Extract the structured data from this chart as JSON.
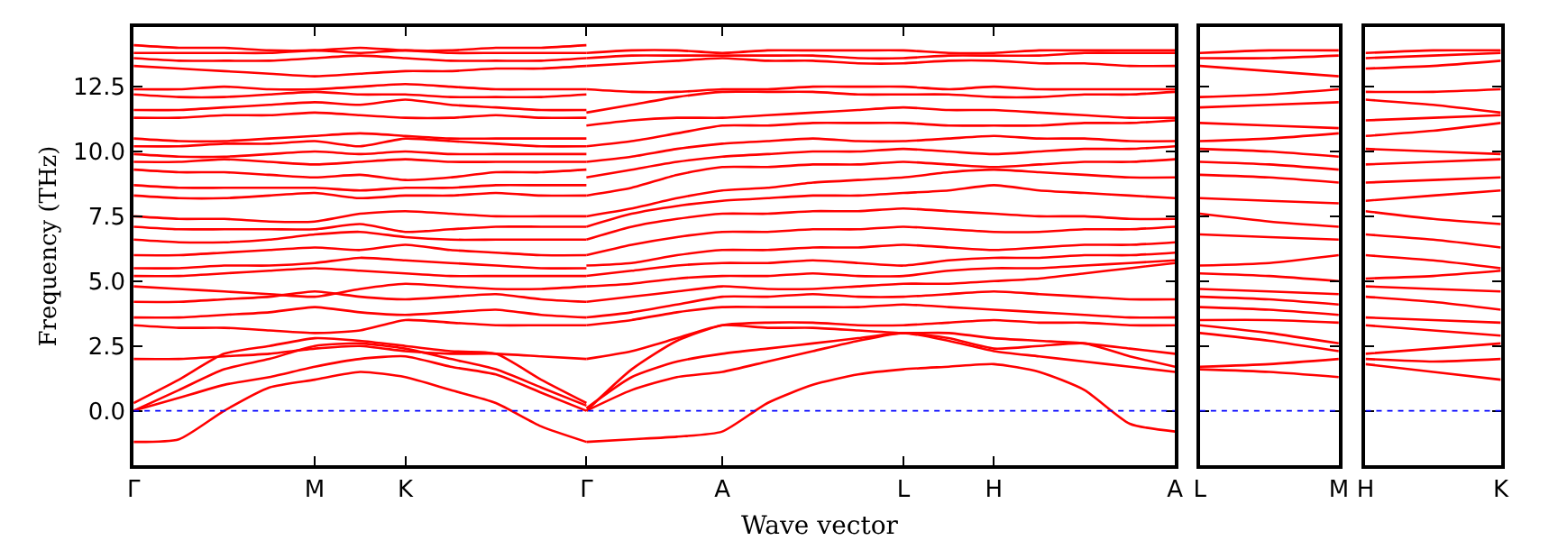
{
  "chart_data": [
    {
      "type": "line",
      "xlabel": "Wave vector",
      "ylabel": "Frequency (THz)",
      "ylim": [
        -2.1,
        14.8
      ],
      "categories": [
        "Γ",
        null,
        null,
        null,
        "M",
        null,
        "K",
        null,
        null,
        null,
        "Γ",
        null,
        null,
        "A",
        null,
        null,
        null,
        "L",
        null,
        "H",
        null,
        null,
        null,
        "A"
      ],
      "yticks": [
        {
          "value": 0,
          "label": "0.0"
        },
        {
          "value": 2.5,
          "label": "2.5"
        },
        {
          "value": 5,
          "label": "5.0"
        },
        {
          "value": 7.5,
          "label": "7.5"
        },
        {
          "value": 10,
          "label": "10.0"
        },
        {
          "value": 12.5,
          "label": "12.5"
        }
      ],
      "ref_lines": [
        {
          "axis": "y",
          "value": 0,
          "color": "#0000ff",
          "line_style": "dotted"
        }
      ],
      "marker": "none",
      "line_style": "solid",
      "series": [
        {
          "color": "#ff0000",
          "values": [
            -1.2,
            -1.1,
            0,
            0.9,
            1.2,
            1.5,
            1.3,
            0.8,
            0.3,
            -0.6,
            -1.2,
            null,
            null,
            null,
            null,
            null,
            null,
            null,
            null,
            null,
            null,
            null,
            null,
            null
          ]
        },
        {
          "color": "#ff0000",
          "values": [
            0,
            0.5,
            1.0,
            1.3,
            1.7,
            2.0,
            2.1,
            1.7,
            1.4,
            0.7,
            0,
            null,
            null,
            null,
            null,
            null,
            null,
            null,
            null,
            null,
            null,
            null,
            null,
            null
          ]
        },
        {
          "color": "#ff0000",
          "values": [
            0,
            0.8,
            1.6,
            2.0,
            2.5,
            2.6,
            2.4,
            2.0,
            1.6,
            0.9,
            0.2,
            null,
            null,
            null,
            null,
            null,
            null,
            null,
            null,
            null,
            null,
            null,
            null,
            null
          ]
        },
        {
          "color": "#ff0000",
          "values": [
            0.3,
            1.2,
            2.2,
            2.5,
            2.8,
            2.7,
            2.5,
            2.3,
            2.2,
            1.2,
            0.3,
            null,
            null,
            null,
            null,
            null,
            null,
            null,
            null,
            null,
            null,
            null,
            null,
            null
          ]
        },
        {
          "color": "#ff0000",
          "values": [
            2.0,
            2.0,
            2.1,
            2.2,
            2.4,
            2.5,
            2.3,
            2.2,
            2.2,
            2.1,
            2.0,
            null,
            null,
            null,
            null,
            null,
            null,
            null,
            null,
            null,
            null,
            null,
            null,
            null
          ]
        },
        {
          "color": "#ff0000",
          "values": [
            3.3,
            3.2,
            3.2,
            3.1,
            3.0,
            3.1,
            3.5,
            3.4,
            3.3,
            3.3,
            3.3,
            null,
            null,
            null,
            null,
            null,
            null,
            null,
            null,
            null,
            null,
            null,
            null,
            null
          ]
        },
        {
          "color": "#ff0000",
          "values": [
            3.6,
            3.6,
            3.7,
            3.8,
            4.0,
            3.8,
            3.7,
            3.8,
            3.9,
            3.7,
            3.6,
            null,
            null,
            null,
            null,
            null,
            null,
            null,
            null,
            null,
            null,
            null,
            null,
            null
          ]
        },
        {
          "color": "#ff0000",
          "values": [
            4.2,
            4.2,
            4.3,
            4.4,
            4.6,
            4.4,
            4.3,
            4.4,
            4.5,
            4.3,
            4.2,
            null,
            null,
            null,
            null,
            null,
            null,
            null,
            null,
            null,
            null,
            null,
            null,
            null
          ]
        },
        {
          "color": "#ff0000",
          "values": [
            4.8,
            4.7,
            4.6,
            4.5,
            4.4,
            4.7,
            4.9,
            4.8,
            4.7,
            4.7,
            4.8,
            null,
            null,
            null,
            null,
            null,
            null,
            null,
            null,
            null,
            null,
            null,
            null,
            null
          ]
        },
        {
          "color": "#ff0000",
          "values": [
            5.2,
            5.2,
            5.3,
            5.4,
            5.5,
            5.4,
            5.3,
            5.2,
            5.2,
            5.2,
            5.2,
            null,
            null,
            null,
            null,
            null,
            null,
            null,
            null,
            null,
            null,
            null,
            null,
            null
          ]
        },
        {
          "color": "#ff0000",
          "values": [
            5.5,
            5.5,
            5.6,
            5.6,
            5.7,
            5.9,
            5.8,
            5.7,
            5.6,
            5.5,
            5.5,
            null,
            null,
            null,
            null,
            null,
            null,
            null,
            null,
            null,
            null,
            null,
            null,
            null
          ]
        },
        {
          "color": "#ff0000",
          "values": [
            6.0,
            6.0,
            6.1,
            6.2,
            6.3,
            6.2,
            6.4,
            6.2,
            6.1,
            6.0,
            6.0,
            null,
            null,
            null,
            null,
            null,
            null,
            null,
            null,
            null,
            null,
            null,
            null,
            null
          ]
        },
        {
          "color": "#ff0000",
          "values": [
            6.6,
            6.5,
            6.5,
            6.6,
            6.8,
            6.9,
            6.7,
            6.6,
            6.6,
            6.6,
            6.6,
            null,
            null,
            null,
            null,
            null,
            null,
            null,
            null,
            null,
            null,
            null,
            null,
            null
          ]
        },
        {
          "color": "#ff0000",
          "values": [
            7.1,
            7.0,
            7.0,
            7.0,
            7.0,
            7.2,
            6.9,
            7.0,
            7.1,
            7.1,
            7.1,
            null,
            null,
            null,
            null,
            null,
            null,
            null,
            null,
            null,
            null,
            null,
            null,
            null
          ]
        },
        {
          "color": "#ff0000",
          "values": [
            7.5,
            7.4,
            7.4,
            7.3,
            7.3,
            7.6,
            7.7,
            7.6,
            7.5,
            7.5,
            7.5,
            null,
            null,
            null,
            null,
            null,
            null,
            null,
            null,
            null,
            null,
            null,
            null,
            null
          ]
        },
        {
          "color": "#ff0000",
          "values": [
            8.3,
            8.2,
            8.2,
            8.3,
            8.4,
            8.2,
            8.3,
            8.3,
            8.4,
            8.3,
            8.3,
            null,
            null,
            null,
            null,
            null,
            null,
            null,
            null,
            null,
            null,
            null,
            null,
            null
          ]
        },
        {
          "color": "#ff0000",
          "values": [
            8.7,
            8.6,
            8.6,
            8.6,
            8.6,
            8.5,
            8.6,
            8.6,
            8.7,
            8.7,
            8.7,
            null,
            null,
            null,
            null,
            null,
            null,
            null,
            null,
            null,
            null,
            null,
            null,
            null
          ]
        },
        {
          "color": "#ff0000",
          "values": [
            9.3,
            9.2,
            9.2,
            9.1,
            9.0,
            9.1,
            8.9,
            9.0,
            9.2,
            9.2,
            9.3,
            null,
            null,
            null,
            null,
            null,
            null,
            null,
            null,
            null,
            null,
            null,
            null,
            null
          ]
        },
        {
          "color": "#ff0000",
          "values": [
            9.6,
            9.6,
            9.7,
            9.6,
            9.5,
            9.6,
            9.7,
            9.6,
            9.6,
            9.6,
            9.6,
            null,
            null,
            null,
            null,
            null,
            null,
            null,
            null,
            null,
            null,
            null,
            null,
            null
          ]
        },
        {
          "color": "#ff0000",
          "values": [
            9.9,
            9.8,
            9.8,
            9.9,
            10.0,
            9.9,
            10.0,
            9.9,
            9.9,
            9.9,
            9.9,
            null,
            null,
            null,
            null,
            null,
            null,
            null,
            null,
            null,
            null,
            null,
            null,
            null
          ]
        },
        {
          "color": "#ff0000",
          "values": [
            10.2,
            10.2,
            10.3,
            10.3,
            10.4,
            10.2,
            10.5,
            10.4,
            10.3,
            10.2,
            10.2,
            null,
            null,
            null,
            null,
            null,
            null,
            null,
            null,
            null,
            null,
            null,
            null,
            null
          ]
        },
        {
          "color": "#ff0000",
          "values": [
            10.5,
            10.4,
            10.4,
            10.5,
            10.6,
            10.7,
            10.6,
            10.5,
            10.5,
            10.5,
            10.5,
            null,
            null,
            null,
            null,
            null,
            null,
            null,
            null,
            null,
            null,
            null,
            null,
            null
          ]
        },
        {
          "color": "#ff0000",
          "values": [
            11.3,
            11.3,
            11.4,
            11.4,
            11.5,
            11.4,
            11.3,
            11.3,
            11.4,
            11.3,
            11.3,
            null,
            null,
            null,
            null,
            null,
            null,
            null,
            null,
            null,
            null,
            null,
            null,
            null
          ]
        },
        {
          "color": "#ff0000",
          "values": [
            11.6,
            11.6,
            11.7,
            11.8,
            11.9,
            11.8,
            12.0,
            11.8,
            11.7,
            11.6,
            11.6,
            null,
            null,
            null,
            null,
            null,
            null,
            null,
            null,
            null,
            null,
            null,
            null,
            null
          ]
        },
        {
          "color": "#ff0000",
          "values": [
            12.2,
            12.1,
            12.1,
            12.2,
            12.3,
            12.2,
            12.2,
            12.1,
            12.1,
            12.1,
            12.2,
            null,
            null,
            null,
            null,
            null,
            null,
            null,
            null,
            null,
            null,
            null,
            null,
            null
          ]
        },
        {
          "color": "#ff0000",
          "values": [
            12.4,
            12.4,
            12.5,
            12.4,
            12.4,
            12.5,
            12.6,
            12.5,
            12.4,
            12.4,
            12.4,
            null,
            null,
            null,
            null,
            null,
            null,
            null,
            null,
            null,
            null,
            null,
            null,
            null
          ]
        },
        {
          "color": "#ff0000",
          "values": [
            13.3,
            13.2,
            13.1,
            13.0,
            12.9,
            13.0,
            13.1,
            13.1,
            13.2,
            13.2,
            13.3,
            null,
            null,
            null,
            null,
            null,
            null,
            null,
            null,
            null,
            null,
            null,
            null,
            null
          ]
        },
        {
          "color": "#ff0000",
          "values": [
            13.6,
            13.5,
            13.5,
            13.5,
            13.6,
            13.7,
            13.6,
            13.5,
            13.5,
            13.5,
            13.6,
            null,
            null,
            null,
            null,
            null,
            null,
            null,
            null,
            null,
            null,
            null,
            null,
            null
          ]
        },
        {
          "color": "#ff0000",
          "values": [
            13.8,
            13.8,
            13.8,
            13.8,
            13.9,
            13.8,
            13.9,
            13.8,
            13.8,
            13.8,
            13.8,
            null,
            null,
            null,
            null,
            null,
            null,
            null,
            null,
            null,
            null,
            null,
            null,
            null
          ]
        },
        {
          "color": "#ff0000",
          "values": [
            14.1,
            14.0,
            14.0,
            13.9,
            13.9,
            14.0,
            13.9,
            13.9,
            14.0,
            14.0,
            14.1,
            null,
            null,
            null,
            null,
            null,
            null,
            null,
            null,
            null,
            null,
            null,
            null,
            null
          ]
        },
        {
          "color": "#ff0000",
          "values": [
            null,
            null,
            null,
            null,
            null,
            null,
            null,
            null,
            null,
            null,
            -1.2,
            -1.1,
            -1.0,
            -0.8,
            0.3,
            1.0,
            1.4,
            1.6,
            1.7,
            1.8,
            1.5,
            0.8,
            -0.5,
            -0.8
          ]
        },
        {
          "color": "#ff0000",
          "values": [
            null,
            null,
            null,
            null,
            null,
            null,
            null,
            null,
            null,
            null,
            0,
            0.8,
            1.3,
            1.5,
            1.9,
            2.3,
            2.7,
            3.0,
            2.7,
            2.3,
            2.1,
            1.9,
            1.7,
            1.5
          ]
        },
        {
          "color": "#ff0000",
          "values": [
            null,
            null,
            null,
            null,
            null,
            null,
            null,
            null,
            null,
            null,
            0.1,
            1.3,
            1.9,
            2.2,
            2.4,
            2.6,
            2.8,
            3.0,
            2.8,
            2.4,
            2.5,
            2.6,
            2.1,
            1.7
          ]
        },
        {
          "color": "#ff0000",
          "values": [
            null,
            null,
            null,
            null,
            null,
            null,
            null,
            null,
            null,
            null,
            0,
            1.6,
            2.7,
            3.3,
            3.4,
            3.4,
            3.3,
            3.3,
            3.4,
            3.5,
            3.4,
            3.4,
            3.3,
            3.3
          ]
        },
        {
          "color": "#ff0000",
          "values": [
            null,
            null,
            null,
            null,
            null,
            null,
            null,
            null,
            null,
            null,
            2.0,
            2.3,
            2.8,
            3.3,
            3.2,
            3.2,
            3.1,
            3.0,
            3.0,
            2.8,
            2.7,
            2.6,
            2.4,
            2.2
          ]
        },
        {
          "color": "#ff0000",
          "values": [
            null,
            null,
            null,
            null,
            null,
            null,
            null,
            null,
            null,
            null,
            3.3,
            3.5,
            3.8,
            4.0,
            4.0,
            4.0,
            4.0,
            4.1,
            4.0,
            3.9,
            3.8,
            3.7,
            3.6,
            3.6
          ]
        },
        {
          "color": "#ff0000",
          "values": [
            null,
            null,
            null,
            null,
            null,
            null,
            null,
            null,
            null,
            null,
            3.6,
            3.8,
            4.1,
            4.4,
            4.4,
            4.5,
            4.4,
            4.4,
            4.5,
            4.6,
            4.5,
            4.4,
            4.3,
            4.3
          ]
        },
        {
          "color": "#ff0000",
          "values": [
            null,
            null,
            null,
            null,
            null,
            null,
            null,
            null,
            null,
            null,
            4.2,
            4.4,
            4.6,
            4.8,
            4.7,
            4.7,
            4.8,
            4.9,
            4.9,
            5.0,
            5.1,
            5.3,
            5.5,
            5.7
          ]
        },
        {
          "color": "#ff0000",
          "values": [
            null,
            null,
            null,
            null,
            null,
            null,
            null,
            null,
            null,
            null,
            4.8,
            4.9,
            5.1,
            5.2,
            5.2,
            5.3,
            5.2,
            5.2,
            5.4,
            5.5,
            5.5,
            5.6,
            5.7,
            5.8
          ]
        },
        {
          "color": "#ff0000",
          "values": [
            null,
            null,
            null,
            null,
            null,
            null,
            null,
            null,
            null,
            null,
            5.2,
            5.4,
            5.6,
            5.7,
            5.7,
            5.8,
            5.7,
            5.6,
            5.8,
            5.9,
            5.9,
            6.0,
            6.0,
            6.1
          ]
        },
        {
          "color": "#ff0000",
          "values": [
            null,
            null,
            null,
            null,
            null,
            null,
            null,
            null,
            null,
            null,
            5.6,
            5.7,
            6.0,
            6.2,
            6.2,
            6.3,
            6.3,
            6.4,
            6.3,
            6.2,
            6.3,
            6.4,
            6.4,
            6.5
          ]
        },
        {
          "color": "#ff0000",
          "values": [
            null,
            null,
            null,
            null,
            null,
            null,
            null,
            null,
            null,
            null,
            6.0,
            6.4,
            6.7,
            6.9,
            6.9,
            7.0,
            7.0,
            7.1,
            7.0,
            6.9,
            6.9,
            7.0,
            7.0,
            7.1
          ]
        },
        {
          "color": "#ff0000",
          "values": [
            null,
            null,
            null,
            null,
            null,
            null,
            null,
            null,
            null,
            null,
            6.6,
            7.1,
            7.4,
            7.6,
            7.6,
            7.7,
            7.7,
            7.8,
            7.7,
            7.6,
            7.5,
            7.5,
            7.4,
            7.4
          ]
        },
        {
          "color": "#ff0000",
          "values": [
            null,
            null,
            null,
            null,
            null,
            null,
            null,
            null,
            null,
            null,
            7.1,
            7.6,
            7.9,
            8.1,
            8.2,
            8.3,
            8.3,
            8.4,
            8.5,
            8.7,
            8.5,
            8.4,
            8.3,
            8.2
          ]
        },
        {
          "color": "#ff0000",
          "values": [
            null,
            null,
            null,
            null,
            null,
            null,
            null,
            null,
            null,
            null,
            7.5,
            7.8,
            8.2,
            8.5,
            8.6,
            8.8,
            8.9,
            9.0,
            9.2,
            9.3,
            9.2,
            9.1,
            9.0,
            9.0
          ]
        },
        {
          "color": "#ff0000",
          "values": [
            null,
            null,
            null,
            null,
            null,
            null,
            null,
            null,
            null,
            null,
            8.3,
            8.6,
            9.1,
            9.4,
            9.4,
            9.5,
            9.5,
            9.6,
            9.5,
            9.4,
            9.5,
            9.6,
            9.6,
            9.7
          ]
        },
        {
          "color": "#ff0000",
          "values": [
            null,
            null,
            null,
            null,
            null,
            null,
            null,
            null,
            null,
            null,
            9.0,
            9.3,
            9.6,
            9.8,
            9.9,
            10.0,
            10.0,
            10.1,
            10.0,
            9.9,
            10.0,
            10.1,
            10.1,
            10.2
          ]
        },
        {
          "color": "#ff0000",
          "values": [
            null,
            null,
            null,
            null,
            null,
            null,
            null,
            null,
            null,
            null,
            9.6,
            9.8,
            10.1,
            10.3,
            10.4,
            10.5,
            10.4,
            10.4,
            10.5,
            10.6,
            10.5,
            10.5,
            10.4,
            10.4
          ]
        },
        {
          "color": "#ff0000",
          "values": [
            null,
            null,
            null,
            null,
            null,
            null,
            null,
            null,
            null,
            null,
            10.2,
            10.4,
            10.7,
            11.0,
            11.0,
            11.1,
            11.1,
            11.1,
            11.0,
            11.0,
            11.0,
            11.1,
            11.1,
            11.2
          ]
        },
        {
          "color": "#ff0000",
          "values": [
            null,
            null,
            null,
            null,
            null,
            null,
            null,
            null,
            null,
            null,
            11.0,
            11.2,
            11.3,
            11.3,
            11.4,
            11.5,
            11.6,
            11.7,
            11.6,
            11.6,
            11.5,
            11.4,
            11.3,
            11.3
          ]
        },
        {
          "color": "#ff0000",
          "values": [
            null,
            null,
            null,
            null,
            null,
            null,
            null,
            null,
            null,
            null,
            11.5,
            11.8,
            12.1,
            12.3,
            12.3,
            12.3,
            12.2,
            12.2,
            12.2,
            12.1,
            12.1,
            12.2,
            12.2,
            12.3
          ]
        },
        {
          "color": "#ff0000",
          "values": [
            null,
            null,
            null,
            null,
            null,
            null,
            null,
            null,
            null,
            null,
            12.4,
            12.3,
            12.3,
            12.4,
            12.4,
            12.5,
            12.5,
            12.5,
            12.4,
            12.5,
            12.4,
            12.4,
            12.4,
            12.4
          ]
        },
        {
          "color": "#ff0000",
          "values": [
            null,
            null,
            null,
            null,
            null,
            null,
            null,
            null,
            null,
            null,
            13.3,
            13.4,
            13.5,
            13.6,
            13.5,
            13.5,
            13.4,
            13.4,
            13.5,
            13.5,
            13.4,
            13.4,
            13.3,
            13.3
          ]
        },
        {
          "color": "#ff0000",
          "values": [
            null,
            null,
            null,
            null,
            null,
            null,
            null,
            null,
            null,
            null,
            13.6,
            13.7,
            13.7,
            13.7,
            13.7,
            13.7,
            13.6,
            13.6,
            13.7,
            13.7,
            13.7,
            13.8,
            13.8,
            13.8
          ]
        },
        {
          "color": "#ff0000",
          "values": [
            null,
            null,
            null,
            null,
            null,
            null,
            null,
            null,
            null,
            null,
            13.8,
            13.9,
            13.9,
            13.8,
            13.9,
            13.9,
            13.9,
            13.9,
            13.8,
            13.8,
            13.9,
            13.9,
            13.9,
            13.9
          ]
        }
      ]
    },
    {
      "type": "line",
      "tick_labels": "x",
      "ylim": [
        -2.1,
        14.8
      ],
      "categories": [
        "L",
        null,
        "M"
      ],
      "yticks": [
        0,
        2.5,
        5,
        7.5,
        10,
        12.5
      ],
      "ref_lines": [
        {
          "axis": "y",
          "value": 0,
          "color": "#0000ff",
          "line_style": "dotted"
        }
      ],
      "marker": "none",
      "line_style": "solid",
      "series": [
        {
          "color": "#ff0000",
          "values": [
            1.6,
            1.5,
            1.3
          ]
        },
        {
          "color": "#ff0000",
          "values": [
            1.7,
            1.8,
            2.0
          ]
        },
        {
          "color": "#ff0000",
          "values": [
            3.0,
            2.7,
            2.3
          ]
        },
        {
          "color": "#ff0000",
          "values": [
            3.3,
            3.0,
            2.6
          ]
        },
        {
          "color": "#ff0000",
          "values": [
            3.5,
            3.5,
            3.4
          ]
        },
        {
          "color": "#ff0000",
          "values": [
            4.0,
            3.9,
            3.7
          ]
        },
        {
          "color": "#ff0000",
          "values": [
            4.4,
            4.3,
            4.1
          ]
        },
        {
          "color": "#ff0000",
          "values": [
            4.7,
            4.6,
            4.5
          ]
        },
        {
          "color": "#ff0000",
          "values": [
            5.3,
            5.2,
            5.0
          ]
        },
        {
          "color": "#ff0000",
          "values": [
            5.6,
            5.7,
            6.0
          ]
        },
        {
          "color": "#ff0000",
          "values": [
            6.8,
            6.7,
            6.6
          ]
        },
        {
          "color": "#ff0000",
          "values": [
            7.6,
            7.3,
            7.1
          ]
        },
        {
          "color": "#ff0000",
          "values": [
            8.2,
            8.1,
            8.0
          ]
        },
        {
          "color": "#ff0000",
          "values": [
            9.1,
            9.0,
            8.8
          ]
        },
        {
          "color": "#ff0000",
          "values": [
            9.6,
            9.5,
            9.3
          ]
        },
        {
          "color": "#ff0000",
          "values": [
            10.1,
            10.0,
            9.8
          ]
        },
        {
          "color": "#ff0000",
          "values": [
            10.4,
            10.5,
            10.7
          ]
        },
        {
          "color": "#ff0000",
          "values": [
            11.1,
            11.0,
            10.9
          ]
        },
        {
          "color": "#ff0000",
          "values": [
            11.7,
            11.8,
            11.9
          ]
        },
        {
          "color": "#ff0000",
          "values": [
            12.1,
            12.2,
            12.4
          ]
        },
        {
          "color": "#ff0000",
          "values": [
            13.3,
            13.1,
            12.9
          ]
        },
        {
          "color": "#ff0000",
          "values": [
            13.6,
            13.6,
            13.7
          ]
        },
        {
          "color": "#ff0000",
          "values": [
            13.8,
            13.9,
            13.9
          ]
        }
      ]
    },
    {
      "type": "line",
      "tick_labels": "x",
      "ylim": [
        -2.1,
        14.8
      ],
      "categories": [
        "H",
        null,
        "K"
      ],
      "yticks": [
        0,
        2.5,
        5,
        7.5,
        10,
        12.5
      ],
      "ref_lines": [
        {
          "axis": "y",
          "value": 0,
          "color": "#0000ff",
          "line_style": "dotted"
        }
      ],
      "marker": "none",
      "line_style": "solid",
      "series": [
        {
          "color": "#ff0000",
          "values": [
            1.8,
            1.5,
            1.2
          ]
        },
        {
          "color": "#ff0000",
          "values": [
            2.0,
            1.9,
            2.0
          ]
        },
        {
          "color": "#ff0000",
          "values": [
            2.2,
            2.4,
            2.6
          ]
        },
        {
          "color": "#ff0000",
          "values": [
            3.3,
            3.1,
            2.9
          ]
        },
        {
          "color": "#ff0000",
          "values": [
            3.6,
            3.5,
            3.4
          ]
        },
        {
          "color": "#ff0000",
          "values": [
            4.4,
            4.2,
            3.9
          ]
        },
        {
          "color": "#ff0000",
          "values": [
            4.8,
            4.7,
            4.6
          ]
        },
        {
          "color": "#ff0000",
          "values": [
            5.1,
            5.2,
            5.4
          ]
        },
        {
          "color": "#ff0000",
          "values": [
            6.0,
            5.8,
            5.5
          ]
        },
        {
          "color": "#ff0000",
          "values": [
            6.8,
            6.6,
            6.3
          ]
        },
        {
          "color": "#ff0000",
          "values": [
            7.7,
            7.4,
            7.2
          ]
        },
        {
          "color": "#ff0000",
          "values": [
            8.1,
            8.3,
            8.5
          ]
        },
        {
          "color": "#ff0000",
          "values": [
            8.8,
            8.9,
            9.0
          ]
        },
        {
          "color": "#ff0000",
          "values": [
            9.5,
            9.6,
            9.7
          ]
        },
        {
          "color": "#ff0000",
          "values": [
            10.1,
            10.0,
            9.9
          ]
        },
        {
          "color": "#ff0000",
          "values": [
            10.6,
            10.8,
            11.1
          ]
        },
        {
          "color": "#ff0000",
          "values": [
            11.2,
            11.3,
            11.4
          ]
        },
        {
          "color": "#ff0000",
          "values": [
            12.0,
            11.8,
            11.5
          ]
        },
        {
          "color": "#ff0000",
          "values": [
            12.3,
            12.3,
            12.4
          ]
        },
        {
          "color": "#ff0000",
          "values": [
            13.2,
            13.3,
            13.5
          ]
        },
        {
          "color": "#ff0000",
          "values": [
            13.6,
            13.7,
            13.8
          ]
        },
        {
          "color": "#ff0000",
          "values": [
            13.8,
            13.9,
            13.9
          ]
        }
      ]
    }
  ]
}
